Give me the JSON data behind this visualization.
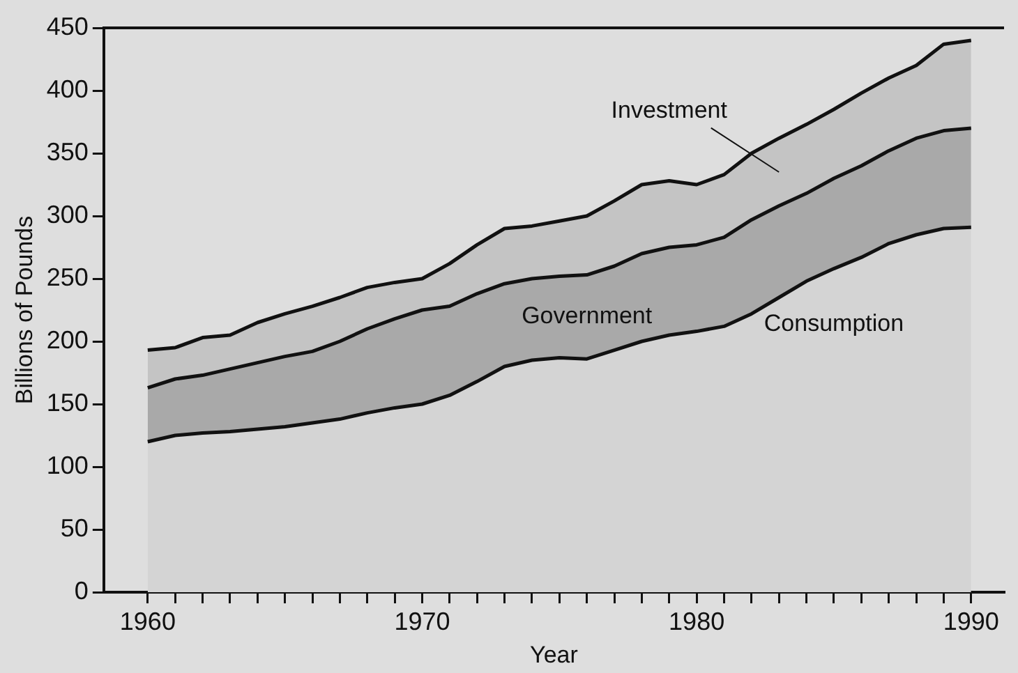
{
  "chart_data": {
    "type": "area",
    "xlabel": "Year",
    "ylabel": "Billions of Pounds",
    "stacked": true,
    "legend": false,
    "grid": false,
    "marker": "none",
    "x": [
      1960,
      1961,
      1962,
      1963,
      1964,
      1965,
      1966,
      1967,
      1968,
      1969,
      1970,
      1971,
      1972,
      1973,
      1974,
      1975,
      1976,
      1977,
      1978,
      1979,
      1980,
      1981,
      1982,
      1983,
      1984,
      1985,
      1986,
      1987,
      1988,
      1989,
      1990
    ],
    "series": [
      {
        "name": "Consumption",
        "color": "#d4d4d4",
        "values": [
          120,
          125,
          127,
          128,
          130,
          132,
          135,
          138,
          143,
          147,
          150,
          157,
          168,
          180,
          185,
          187,
          186,
          193,
          200,
          205,
          208,
          212,
          222,
          235,
          248,
          258,
          267,
          278,
          285,
          290,
          291
        ]
      },
      {
        "name": "Government",
        "color": "#a9a9a9",
        "values": [
          43,
          45,
          46,
          50,
          53,
          56,
          57,
          62,
          67,
          71,
          75,
          71,
          70,
          66,
          65,
          65,
          67,
          67,
          70,
          70,
          69,
          71,
          75,
          73,
          70,
          72,
          73,
          74,
          77,
          78,
          79
        ]
      },
      {
        "name": "Investment",
        "color": "#c4c4c4",
        "values": [
          30,
          25,
          30,
          27,
          32,
          34,
          36,
          35,
          33,
          29,
          25,
          34,
          39,
          44,
          42,
          44,
          47,
          52,
          55,
          53,
          48,
          50,
          53,
          54,
          55,
          55,
          58,
          58,
          58,
          69,
          70
        ]
      }
    ],
    "xlim": [
      1958.4,
      1991.2
    ],
    "xticks": [
      {
        "value": 1960,
        "label": "1960"
      },
      {
        "value": 1961,
        "label": null
      },
      {
        "value": 1962,
        "label": null
      },
      {
        "value": 1963,
        "label": null
      },
      {
        "value": 1964,
        "label": null
      },
      {
        "value": 1965,
        "label": null
      },
      {
        "value": 1966,
        "label": null
      },
      {
        "value": 1967,
        "label": null
      },
      {
        "value": 1968,
        "label": null
      },
      {
        "value": 1969,
        "label": null
      },
      {
        "value": 1970,
        "label": "1970"
      },
      {
        "value": 1971,
        "label": null
      },
      {
        "value": 1972,
        "label": null
      },
      {
        "value": 1973,
        "label": null
      },
      {
        "value": 1974,
        "label": null
      },
      {
        "value": 1975,
        "label": null
      },
      {
        "value": 1976,
        "label": null
      },
      {
        "value": 1977,
        "label": null
      },
      {
        "value": 1978,
        "label": null
      },
      {
        "value": 1979,
        "label": null
      },
      {
        "value": 1980,
        "label": "1980"
      },
      {
        "value": 1981,
        "label": null
      },
      {
        "value": 1982,
        "label": null
      },
      {
        "value": 1983,
        "label": null
      },
      {
        "value": 1984,
        "label": null
      },
      {
        "value": 1985,
        "label": null
      },
      {
        "value": 1986,
        "label": null
      },
      {
        "value": 1987,
        "label": null
      },
      {
        "value": 1988,
        "label": null
      },
      {
        "value": 1989,
        "label": null
      },
      {
        "value": 1990,
        "label": "1990"
      }
    ],
    "ylim": [
      0,
      450
    ],
    "yticks": [
      0,
      50,
      100,
      150,
      200,
      250,
      300,
      350,
      400,
      450
    ]
  }
}
